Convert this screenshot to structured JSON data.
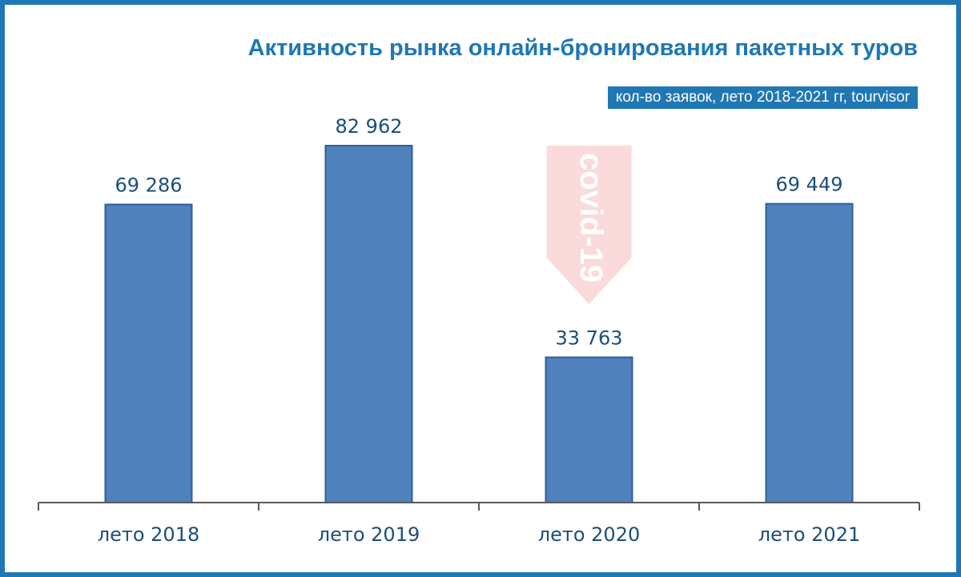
{
  "chart_data": {
    "type": "bar",
    "title": "Активность рынка онлайн-бронирования пакетных туров",
    "subtitle": "кол-во заявок, лето 2018-2021 гг, tourvisor",
    "categories": [
      "лето 2018",
      "лето 2019",
      "лето 2020",
      "лето 2021"
    ],
    "values": [
      69286,
      82962,
      33763,
      69449
    ],
    "value_labels": [
      "69 286",
      "82 962",
      "33 763",
      "69 449"
    ],
    "annotation": "covid-19",
    "ylim": [
      0,
      100000
    ],
    "grid": false,
    "legend": "none"
  },
  "colors": {
    "bar": "#4f81bd",
    "bar_border": "#2f5f97",
    "title": "#1f77b4",
    "frame": "#1f77b4",
    "arrow": "#fadadb"
  }
}
